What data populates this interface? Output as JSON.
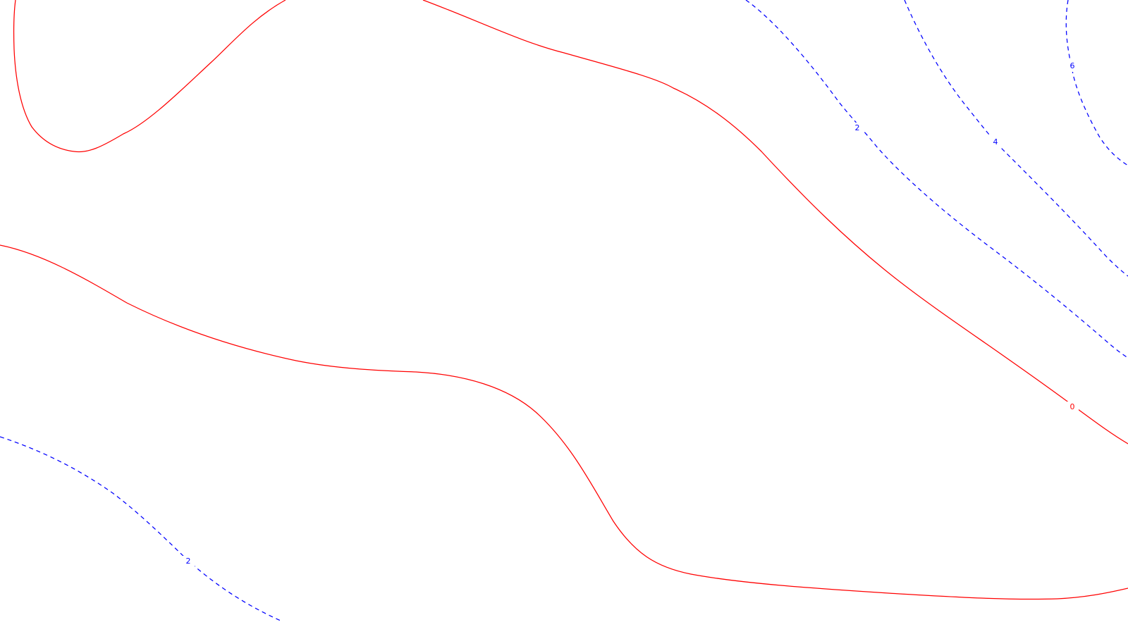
{
  "contour_plot": {
    "colors": {
      "zero_level": "#ff0000",
      "positive_levels": "#0000ff",
      "background": "#ffffff"
    },
    "levels": [
      {
        "key": "zero-a",
        "value": 0,
        "style": "solid",
        "color": "#ff0000"
      },
      {
        "key": "zero-b",
        "value": 0,
        "style": "solid",
        "color": "#ff0000",
        "label": "0"
      },
      {
        "key": "level-2-lower-left",
        "value": 2,
        "style": "dashed",
        "color": "#0000ff",
        "label": "2"
      },
      {
        "key": "level-2-upper-right",
        "value": 2,
        "style": "dashed",
        "color": "#0000ff",
        "label": "2"
      },
      {
        "key": "level-4",
        "value": 4,
        "style": "dashed",
        "color": "#0000ff",
        "label": "4"
      },
      {
        "key": "level-6",
        "value": 6,
        "style": "dashed",
        "color": "#0000ff",
        "label": "6"
      }
    ]
  }
}
